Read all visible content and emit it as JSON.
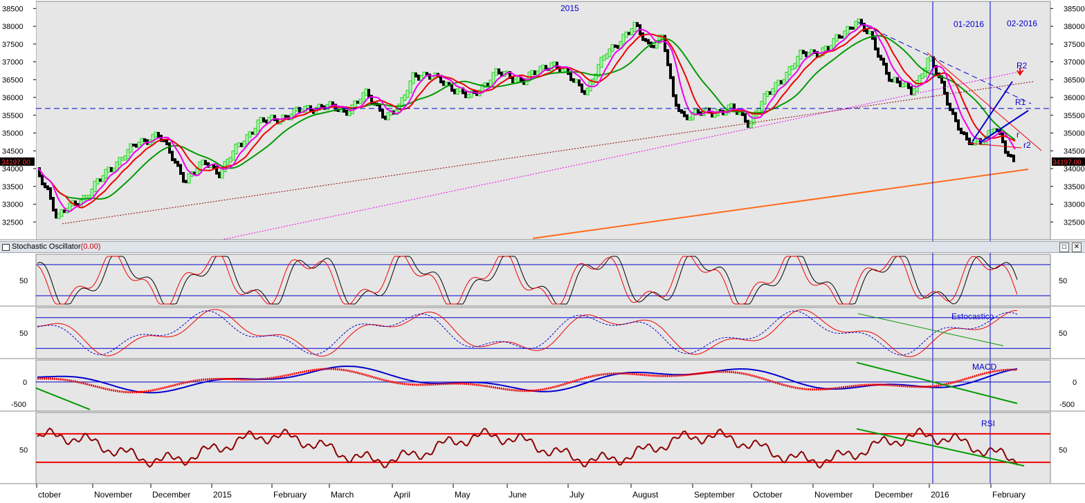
{
  "colors": {
    "bg": "#e6e6e6",
    "up": "#22cc22",
    "down": "#000000",
    "ma_fast": "#ee00ee",
    "ma_mid": "#ee0000",
    "ma_slow": "#009900",
    "grid": "#0000cc",
    "trend": "#ff6a1a"
  },
  "price_pane": {
    "current_price": "34197.00",
    "y_ticks": [
      "38500",
      "38000",
      "37500",
      "37000",
      "36500",
      "36000",
      "35500",
      "35000",
      "34500",
      "34000",
      "33500",
      "33000",
      "32500"
    ],
    "annotations": {
      "year": "2015",
      "period1": "01-2016",
      "period2": "02-2016",
      "r2_upper": "R2",
      "r1": "R1",
      "r_small": "r",
      "r2_lower": "r2"
    }
  },
  "stoch_pane": {
    "title": "Stochastic Oscillator",
    "value": "(0.00)",
    "tick": "50"
  },
  "estoc_pane": {
    "label": "Estocastico",
    "tick": "50"
  },
  "macd_pane": {
    "label": "MACD",
    "ticks": [
      "0",
      "-500"
    ]
  },
  "rsi_pane": {
    "label": "RSI",
    "tick": "50"
  },
  "x_axis": {
    "labels": [
      "ctober",
      "November",
      "December",
      "2015",
      "February",
      "March",
      "April",
      "May",
      "June",
      "July",
      "August",
      "September",
      "October",
      "November",
      "December",
      "2016",
      "February"
    ]
  },
  "chart_data": {
    "type": "line",
    "title": "",
    "x": [
      "Oct 2014",
      "Nov 2014",
      "Dec 2014",
      "Jan 2015",
      "Feb 2015",
      "Mar 2015",
      "Apr 2015",
      "May 2015",
      "Jun 2015",
      "Jul 2015",
      "Aug 2015",
      "Sep 2015",
      "Oct 2015",
      "Nov 2015",
      "Dec 2015",
      "Jan 2016",
      "Feb 2016"
    ],
    "series": [
      {
        "values": [
          33900,
          33400,
          34900,
          34200,
          35500,
          35600,
          36300,
          36200,
          36700,
          36800,
          37600,
          35600,
          35900,
          37900,
          36500,
          34900,
          34197
        ]
      }
    ],
    "ylim": [
      32000,
      38700
    ]
  }
}
